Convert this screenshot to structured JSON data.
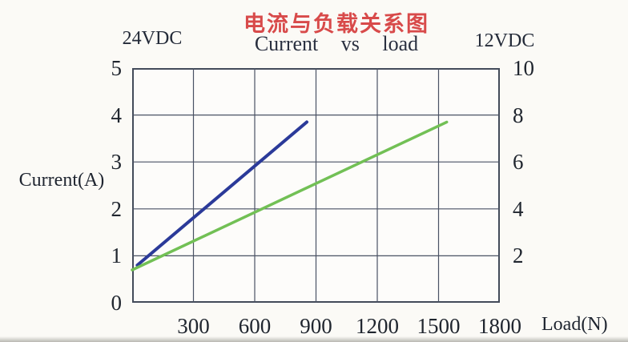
{
  "title_cn": "电流与负载关系图",
  "subtitle": "Current vs load",
  "left_axis_header": "24VDC",
  "right_axis_header": "12VDC",
  "y_axis_title": "Current(A)",
  "x_axis_title": "Load(N)",
  "colors": {
    "title_red": "#d84a4a",
    "line_24vdc_blue": "#2b3a99",
    "line_12vdc_green": "#72c055",
    "grid": "#4a5264",
    "border": "#434b5a",
    "text": "#20262f",
    "background": "#fbfaf6"
  },
  "chart_data": {
    "type": "line",
    "title": "电流与负载关系图",
    "subtitle": "Current vs load",
    "xlabel": "Load(N)",
    "ylabel_left": "Current(A)",
    "left_axis_name": "24VDC",
    "right_axis_name": "12VDC",
    "xlim": [
      0,
      1800
    ],
    "ylim_left": [
      0,
      5
    ],
    "ylim_right": [
      0,
      10
    ],
    "x_ticks": [
      300,
      600,
      900,
      1200,
      1500,
      1800
    ],
    "y_left_ticks": [
      0,
      1,
      2,
      3,
      4,
      5
    ],
    "y_right_ticks": [
      2,
      4,
      6,
      8,
      10
    ],
    "grid": true,
    "legend": "none",
    "series": [
      {
        "name": "24VDC",
        "axis": "left",
        "color": "#2b3a99",
        "stroke_width": 4,
        "points": [
          [
            25,
            0.8
          ],
          [
            855,
            3.85
          ]
        ]
      },
      {
        "name": "12VDC",
        "axis": "right",
        "color": "#72c055",
        "stroke_width": 3.5,
        "points": [
          [
            0,
            1.4
          ],
          [
            1540,
            7.7
          ]
        ]
      }
    ]
  }
}
